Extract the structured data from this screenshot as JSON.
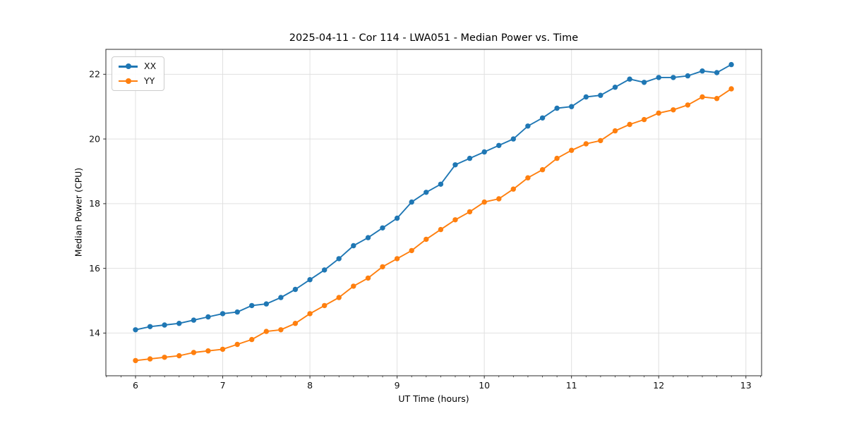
{
  "chart_data": {
    "type": "line",
    "title": "2025-04-11 - Cor 114 - LWA051 - Median Power vs. Time",
    "xlabel": "UT Time (hours)",
    "ylabel": "Median Power (CPU)",
    "legend_position": "upper left",
    "grid": true,
    "xlim": [
      5.66,
      13.18
    ],
    "ylim": [
      12.68,
      22.77
    ],
    "xticks": [
      6,
      7,
      8,
      9,
      10,
      11,
      12,
      13
    ],
    "yticks": [
      14,
      16,
      18,
      20,
      22
    ],
    "x_minor_step": 0.16667,
    "marker": "circle",
    "x": [
      6.0,
      6.167,
      6.333,
      6.5,
      6.667,
      6.833,
      7.0,
      7.167,
      7.333,
      7.5,
      7.667,
      7.833,
      8.0,
      8.167,
      8.333,
      8.5,
      8.667,
      8.833,
      9.0,
      9.167,
      9.333,
      9.5,
      9.667,
      9.833,
      10.0,
      10.167,
      10.333,
      10.5,
      10.667,
      10.833,
      11.0,
      11.167,
      11.333,
      11.5,
      11.667,
      11.833,
      12.0,
      12.167,
      12.333,
      12.5,
      12.667,
      12.833
    ],
    "series": [
      {
        "name": "XX",
        "color": "#1f77b4",
        "values": [
          14.1,
          14.2,
          14.25,
          14.3,
          14.4,
          14.5,
          14.6,
          14.65,
          14.85,
          14.9,
          15.1,
          15.35,
          15.65,
          15.95,
          16.3,
          16.7,
          16.95,
          17.25,
          17.55,
          18.05,
          18.35,
          18.6,
          19.2,
          19.4,
          19.6,
          19.8,
          20.0,
          20.4,
          20.65,
          20.95,
          21.0,
          21.3,
          21.35,
          21.6,
          21.85,
          21.75,
          21.9,
          21.9,
          21.95,
          22.1,
          22.05,
          22.3
        ]
      },
      {
        "name": "YY",
        "color": "#ff7f0e",
        "values": [
          13.15,
          13.2,
          13.25,
          13.3,
          13.4,
          13.45,
          13.5,
          13.65,
          13.8,
          14.05,
          14.1,
          14.3,
          14.6,
          14.85,
          15.1,
          15.45,
          15.7,
          16.05,
          16.3,
          16.55,
          16.9,
          17.2,
          17.5,
          17.75,
          18.05,
          18.15,
          18.45,
          18.8,
          19.05,
          19.4,
          19.65,
          19.85,
          19.95,
          20.25,
          20.45,
          20.6,
          20.8,
          20.9,
          21.05,
          21.3,
          21.25,
          21.55
        ]
      }
    ],
    "colors": {
      "background": "#ffffff",
      "grid": "#e0e0e0",
      "spine": "#2b2b2b",
      "tick": "#111111"
    }
  }
}
